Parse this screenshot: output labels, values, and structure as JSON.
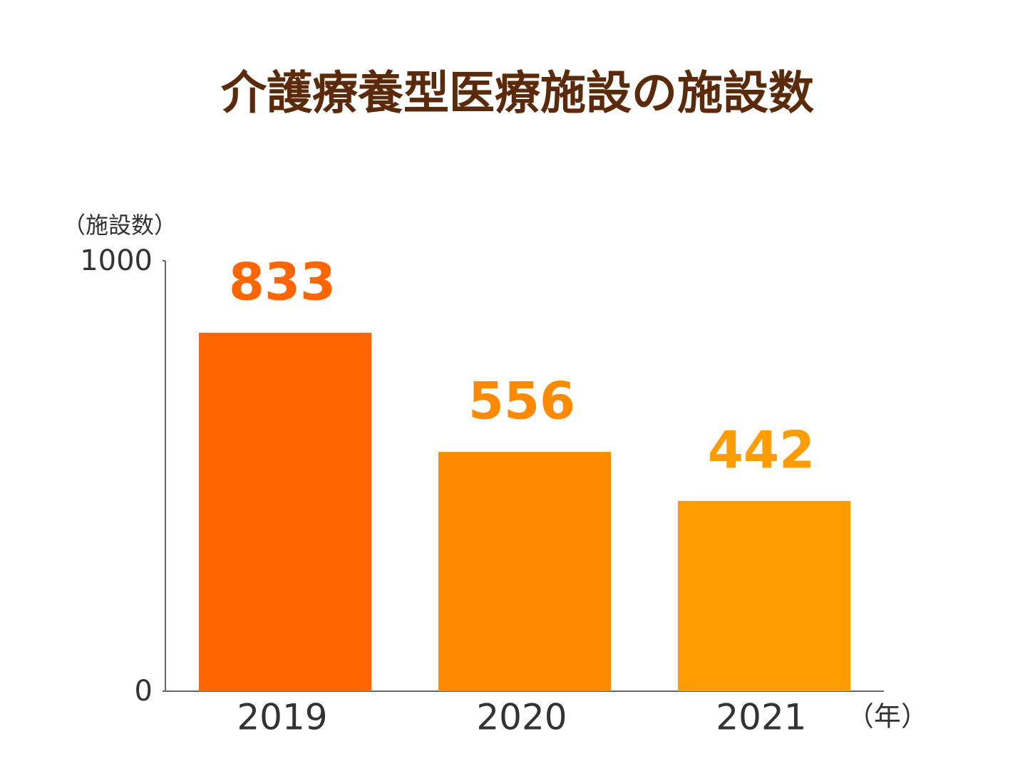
{
  "chart_data": {
    "type": "bar",
    "title": "介護療養型医療施設の施設数",
    "y_label": "（施設数）",
    "x_label": "（年）",
    "categories": [
      "2019",
      "2020",
      "2021"
    ],
    "values": [
      833,
      556,
      442
    ],
    "colors": [
      "#ff6600",
      "#ff8a00",
      "#ff9c00"
    ],
    "ylim": [
      0,
      1000
    ],
    "yticks": [
      0,
      1000
    ]
  }
}
